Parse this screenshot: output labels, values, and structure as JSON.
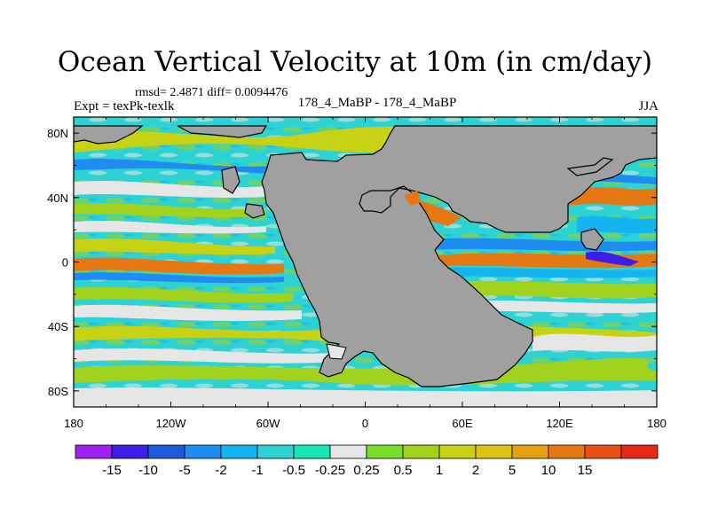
{
  "header": {
    "title": "Ocean Vertical Velocity at 10m (in cm/day)",
    "stats": "rmsd= 2.4871  diff= 0.0094476",
    "experiment": "Expt = texPk-texlk",
    "cases": "178_4_MaBP - 178_4_MaBP",
    "season": "JJA"
  },
  "map": {
    "x_ticks": [
      "180",
      "120W",
      "60W",
      "0",
      "60E",
      "120E",
      "180"
    ],
    "y_ticks": [
      "80N",
      "40N",
      "0",
      "40S",
      "80S"
    ],
    "land_color": "#a0a0a0"
  },
  "colorbar": {
    "colors": [
      "#a020f0",
      "#3c1ee6",
      "#1e5adc",
      "#1e8cf0",
      "#14b4f0",
      "#2dd2d2",
      "#14e6b4",
      "#e6e6e6",
      "#78dc28",
      "#a0d21e",
      "#c8d214",
      "#dcc314",
      "#e6a014",
      "#e67814",
      "#e65014",
      "#e62814"
    ],
    "labels": [
      "-15",
      "-10",
      "-5",
      "-2",
      "-1",
      "-0.5",
      "-0.25",
      "0.25",
      "0.5",
      "1",
      "2",
      "5",
      "10",
      "15"
    ]
  }
}
